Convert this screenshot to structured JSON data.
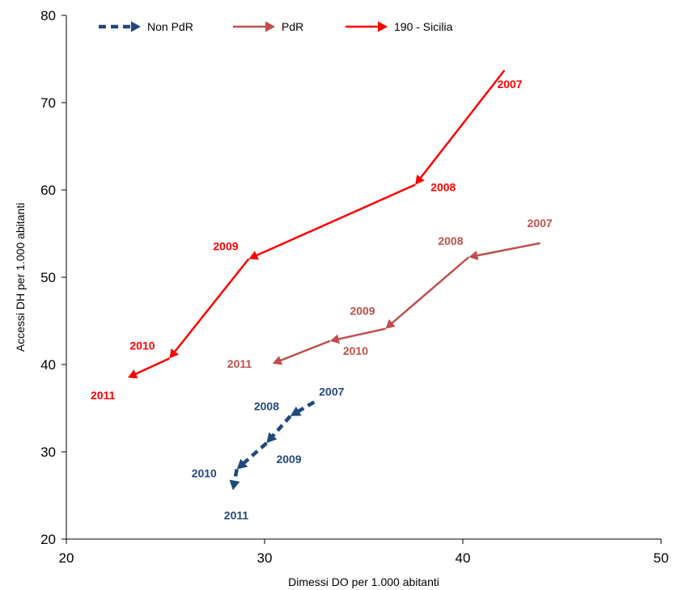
{
  "chart_data": {
    "type": "line",
    "xlabel": "Dimessi DO per 1.000 abitanti",
    "ylabel": "Accessi DH per 1.000 abitanti",
    "xlim": [
      20,
      50
    ],
    "ylim": [
      20,
      80
    ],
    "x_ticks": [
      "20",
      "30",
      "40",
      "50"
    ],
    "y_ticks": [
      "20",
      "30",
      "40",
      "50",
      "60",
      "70",
      "80"
    ],
    "grid": false,
    "legend_position": "top-left",
    "series": [
      {
        "name": "Non PdR",
        "color": "#1f497d",
        "dashed": true,
        "points": [
          {
            "year": "2007",
            "x": 32.5,
            "y": 35.7
          },
          {
            "year": "2008",
            "x": 31.3,
            "y": 34.1
          },
          {
            "year": "2009",
            "x": 30.1,
            "y": 31.0
          },
          {
            "year": "2010",
            "x": 28.6,
            "y": 28.0
          },
          {
            "year": "2011",
            "x": 28.4,
            "y": 25.6
          }
        ]
      },
      {
        "name": "PdR",
        "color": "#c0504d",
        "dashed": false,
        "points": [
          {
            "year": "2007",
            "x": 43.9,
            "y": 53.9
          },
          {
            "year": "2008",
            "x": 40.3,
            "y": 52.3
          },
          {
            "year": "2009",
            "x": 36.1,
            "y": 44.1
          },
          {
            "year": "2010",
            "x": 33.3,
            "y": 42.7
          },
          {
            "year": "2011",
            "x": 30.4,
            "y": 40.1
          }
        ]
      },
      {
        "name": "190 - Sicilia",
        "color": "#ff0000",
        "dashed": false,
        "points": [
          {
            "year": "2007",
            "x": 42.1,
            "y": 73.7
          },
          {
            "year": "2008",
            "x": 37.6,
            "y": 60.6
          },
          {
            "year": "2009",
            "x": 29.2,
            "y": 52.1
          },
          {
            "year": "2010",
            "x": 25.2,
            "y": 40.7
          },
          {
            "year": "2011",
            "x": 23.1,
            "y": 38.5
          }
        ]
      }
    ]
  }
}
